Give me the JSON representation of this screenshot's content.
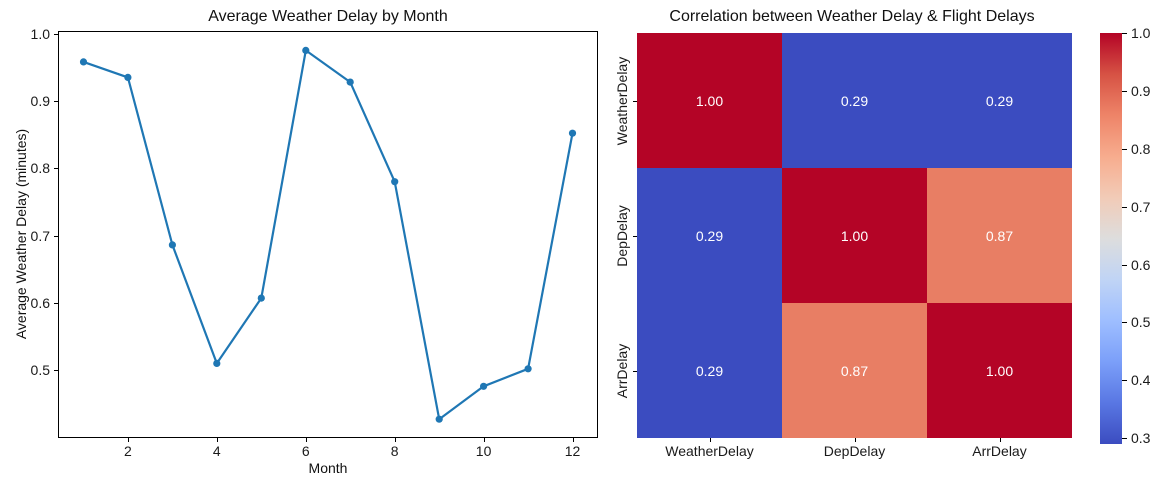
{
  "figure": {
    "background": "#ffffff",
    "text_color": "#111111"
  },
  "chart_data": [
    {
      "type": "line",
      "title": "Average Weather Delay by Month",
      "xlabel": "Month",
      "ylabel": "Average Weather Delay (minutes)",
      "x": [
        1,
        2,
        3,
        4,
        5,
        6,
        7,
        8,
        9,
        10,
        11,
        12
      ],
      "values": [
        0.958,
        0.935,
        0.686,
        0.51,
        0.607,
        0.975,
        0.928,
        0.78,
        0.427,
        0.476,
        0.502,
        0.852
      ],
      "xlim": [
        0.45,
        12.55
      ],
      "ylim": [
        0.4006,
        1.0024
      ],
      "xtick_values": [
        2,
        4,
        6,
        8,
        10,
        12
      ],
      "xtick_labels": [
        "2",
        "4",
        "6",
        "8",
        "10",
        "12"
      ],
      "ytick_values": [
        1.0,
        0.9,
        0.8,
        0.7,
        0.6,
        0.5
      ],
      "ytick_labels": [
        "1.0",
        "0.9",
        "0.8",
        "0.7",
        "0.6",
        "0.5"
      ],
      "line_color": "#1f77b4",
      "marker": "circle",
      "grid": false,
      "legend": null
    },
    {
      "type": "heatmap",
      "title": "Correlation between Weather Delay & Flight Delays",
      "categories": [
        "WeatherDelay",
        "DepDelay",
        "ArrDelay"
      ],
      "matrix": [
        [
          1.0,
          0.29,
          0.29
        ],
        [
          0.29,
          1.0,
          0.87
        ],
        [
          0.29,
          0.87,
          1.0
        ]
      ],
      "cell_labels": [
        [
          "1.00",
          "0.29",
          "0.29"
        ],
        [
          "0.29",
          "1.00",
          "0.87"
        ],
        [
          "0.29",
          "0.87",
          "1.00"
        ]
      ],
      "cell_colors": [
        [
          "#b40426",
          "#3b4cc0",
          "#3b4cc0"
        ],
        [
          "#3b4cc0",
          "#b40426",
          "#e87e64"
        ],
        [
          "#3b4cc0",
          "#e87e64",
          "#b40426"
        ]
      ],
      "annotation_color": "#ffffff",
      "colormap": "coolwarm",
      "vmin": 0.29,
      "vmax": 1.0,
      "colorbar_tick_values": [
        1.0,
        0.9,
        0.8,
        0.7,
        0.6,
        0.5,
        0.4,
        0.3
      ],
      "colorbar_tick_labels": [
        "1.0",
        "0.9",
        "0.8",
        "0.7",
        "0.6",
        "0.5",
        "0.4",
        "0.3"
      ],
      "colorbar_gradient_stops": [
        "#b40426",
        "#d65244",
        "#ee8468",
        "#f7ac8e",
        "#f2cbb7",
        "#dddddd",
        "#c0d4f5",
        "#9ebeff",
        "#7b9ff9",
        "#5977e3",
        "#3b4cc0"
      ]
    }
  ]
}
